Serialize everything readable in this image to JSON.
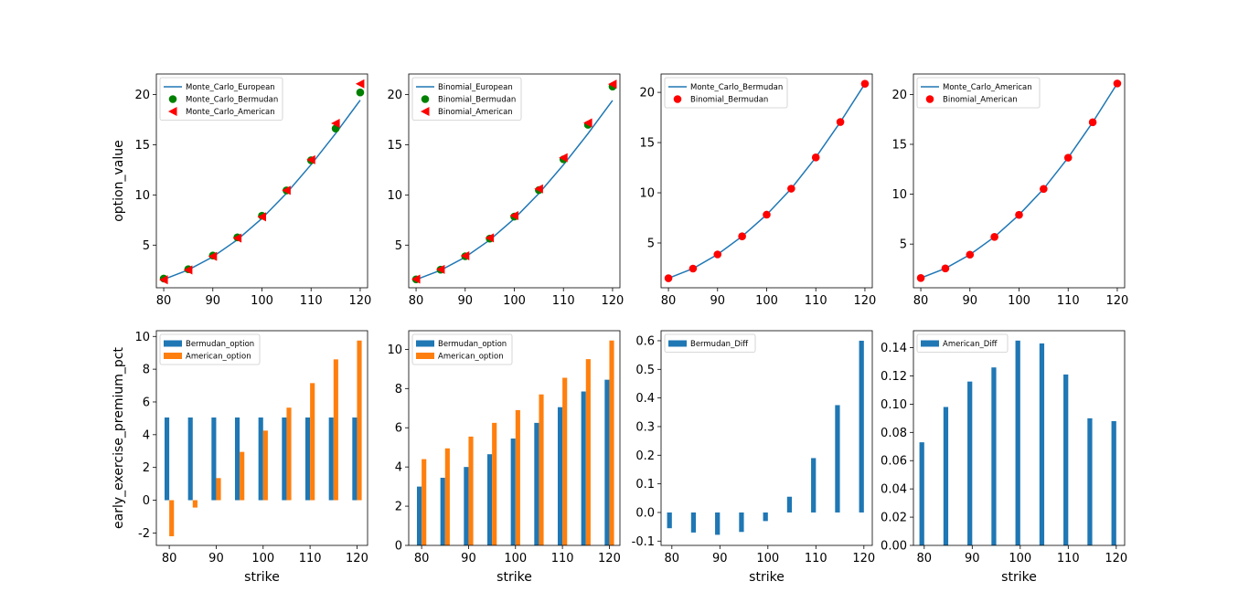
{
  "chart_data": [
    {
      "type": "line",
      "ylabel": "option_value",
      "xlabel": "",
      "x": [
        80,
        85,
        90,
        95,
        100,
        105,
        110,
        115,
        120
      ],
      "xlim": [
        78.5,
        121.5
      ],
      "ylim": [
        0.75,
        22.05
      ],
      "xticks": [
        80,
        90,
        100,
        110,
        120
      ],
      "yticks": [
        5,
        10,
        15,
        20
      ],
      "legend_loc": "upper-left",
      "series": [
        {
          "name": "Monte_Carlo_European",
          "kind": "line",
          "color": "#1f77b4",
          "values": [
            1.59,
            2.53,
            3.83,
            5.54,
            7.66,
            10.17,
            13.02,
            16.13,
            19.44
          ]
        },
        {
          "name": "Monte_Carlo_Bermudan",
          "kind": "marker",
          "marker": "circle",
          "color": "#008000",
          "values": [
            1.67,
            2.6,
            3.96,
            5.77,
            7.93,
            10.45,
            13.45,
            16.62,
            20.21
          ]
        },
        {
          "name": "Monte_Carlo_American",
          "kind": "marker",
          "marker": "triangle-left",
          "color": "#ff0000",
          "values": [
            1.55,
            2.52,
            3.88,
            5.7,
            7.82,
            10.45,
            13.5,
            17.14,
            21.07
          ]
        }
      ]
    },
    {
      "type": "line",
      "ylabel": "",
      "xlabel": "",
      "x": [
        80,
        85,
        90,
        95,
        100,
        105,
        110,
        115,
        120
      ],
      "xlim": [
        78.5,
        121.5
      ],
      "ylim": [
        0.75,
        22.05
      ],
      "xticks": [
        80,
        90,
        100,
        110,
        120
      ],
      "yticks": [
        5,
        10,
        15,
        20
      ],
      "legend_loc": "upper-left",
      "series": [
        {
          "name": "Binomial_European",
          "kind": "line",
          "color": "#1f77b4",
          "values": [
            1.56,
            2.5,
            3.8,
            5.51,
            7.64,
            10.15,
            13.0,
            16.11,
            19.42
          ]
        },
        {
          "name": "Binomial_Bermudan",
          "kind": "marker",
          "marker": "circle",
          "color": "#008000",
          "values": [
            1.59,
            2.55,
            3.89,
            5.65,
            7.84,
            10.48,
            13.55,
            16.99,
            20.8
          ]
        },
        {
          "name": "Binomial_American",
          "kind": "marker",
          "marker": "triangle-left",
          "color": "#ff0000",
          "values": [
            1.61,
            2.58,
            3.94,
            5.72,
            7.94,
            10.6,
            13.71,
            17.18,
            21.04
          ]
        }
      ]
    },
    {
      "type": "line",
      "ylabel": "",
      "xlabel": "",
      "x": [
        80,
        85,
        90,
        95,
        100,
        105,
        110,
        115,
        120
      ],
      "xlim": [
        78.5,
        121.5
      ],
      "ylim": [
        0.54,
        21.83
      ],
      "xticks": [
        80,
        90,
        100,
        110,
        120
      ],
      "yticks": [
        5,
        10,
        15,
        20
      ],
      "legend_loc": "upper-left",
      "series": [
        {
          "name": "Monte_Carlo_Bermudan",
          "kind": "line",
          "color": "#1f77b4",
          "values": [
            1.49,
            2.45,
            3.86,
            5.66,
            7.82,
            10.41,
            13.52,
            17.05,
            20.86
          ]
        },
        {
          "name": "Binomial_Bermudan",
          "kind": "marker",
          "marker": "circle",
          "color": "#ff0000",
          "values": [
            1.49,
            2.45,
            3.86,
            5.66,
            7.82,
            10.41,
            13.52,
            17.05,
            20.86
          ]
        }
      ]
    },
    {
      "type": "line",
      "ylabel": "",
      "xlabel": "",
      "x": [
        80,
        85,
        90,
        95,
        100,
        105,
        110,
        115,
        120
      ],
      "xlim": [
        78.5,
        121.5
      ],
      "ylim": [
        0.62,
        22.05
      ],
      "xticks": [
        80,
        90,
        100,
        110,
        120
      ],
      "yticks": [
        5,
        10,
        15,
        20
      ],
      "legend_loc": "upper-left",
      "series": [
        {
          "name": "Monte_Carlo_American",
          "kind": "line",
          "color": "#1f77b4",
          "values": [
            1.6,
            2.56,
            3.94,
            5.72,
            7.93,
            10.53,
            13.66,
            17.21,
            21.1
          ]
        },
        {
          "name": "Binomial_American",
          "kind": "marker",
          "marker": "circle",
          "color": "#ff0000",
          "values": [
            1.6,
            2.56,
            3.94,
            5.72,
            7.93,
            10.53,
            13.66,
            17.21,
            21.1
          ]
        }
      ]
    },
    {
      "type": "bar",
      "ylabel": "early_exercise_premium_pct",
      "xlabel": "strike",
      "x": [
        80,
        85,
        90,
        95,
        100,
        105,
        110,
        115,
        120
      ],
      "xlim": [
        77.25,
        122.25
      ],
      "ylim": [
        -2.76,
        10.35
      ],
      "xticks": [
        80,
        90,
        100,
        110,
        120
      ],
      "yticks": [
        -2,
        0,
        2,
        4,
        6,
        8,
        10
      ],
      "bar_width": 1,
      "legend_loc": "upper-left",
      "series": [
        {
          "name": "Bermudan_option",
          "color": "#1f77b4",
          "offset": -0.5,
          "values": [
            5.05,
            5.05,
            5.05,
            5.05,
            5.05,
            5.05,
            5.05,
            5.05,
            5.05
          ]
        },
        {
          "name": "American_option",
          "color": "#ff7f0e",
          "offset": 0.5,
          "values": [
            -2.2,
            -0.45,
            1.35,
            2.95,
            4.25,
            5.65,
            7.15,
            8.6,
            9.75
          ]
        }
      ]
    },
    {
      "type": "bar",
      "ylabel": "",
      "xlabel": "strike",
      "x": [
        80,
        85,
        90,
        95,
        100,
        105,
        110,
        115,
        120
      ],
      "xlim": [
        77.25,
        122.25
      ],
      "ylim": [
        0,
        10.95
      ],
      "xticks": [
        80,
        90,
        100,
        110,
        120
      ],
      "yticks": [
        0,
        2,
        4,
        6,
        8,
        10
      ],
      "bar_width": 1,
      "legend_loc": "upper-left",
      "series": [
        {
          "name": "Bermudan_option",
          "color": "#1f77b4",
          "offset": -0.5,
          "values": [
            3.0,
            3.45,
            4.0,
            4.65,
            5.45,
            6.25,
            7.05,
            7.85,
            8.45
          ]
        },
        {
          "name": "American_option",
          "color": "#ff7f0e",
          "offset": 0.5,
          "values": [
            4.4,
            4.95,
            5.55,
            6.25,
            6.9,
            7.7,
            8.55,
            9.5,
            10.45
          ]
        }
      ]
    },
    {
      "type": "bar",
      "ylabel": "",
      "xlabel": "strike",
      "x": [
        80,
        85,
        90,
        95,
        100,
        105,
        110,
        115,
        120
      ],
      "xlim": [
        77.75,
        121.75
      ],
      "ylim": [
        -0.115,
        0.635
      ],
      "xticks": [
        80,
        90,
        100,
        110,
        120
      ],
      "yticks": [
        -0.1,
        0.0,
        0.1,
        0.2,
        0.3,
        0.4,
        0.5,
        0.6
      ],
      "bar_width": 1,
      "legend_loc": "upper-left",
      "series": [
        {
          "name": "Bermudan_Diff",
          "color": "#1f77b4",
          "offset": -0.5,
          "values": [
            -0.055,
            -0.07,
            -0.078,
            -0.068,
            -0.03,
            0.055,
            0.19,
            0.375,
            0.6
          ]
        }
      ]
    },
    {
      "type": "bar",
      "ylabel": "",
      "xlabel": "strike",
      "x": [
        80,
        85,
        90,
        95,
        100,
        105,
        110,
        115,
        120
      ],
      "xlim": [
        77.75,
        121.75
      ],
      "ylim": [
        0,
        0.152
      ],
      "xticks": [
        80,
        90,
        100,
        110,
        120
      ],
      "yticks": [
        0.0,
        0.02,
        0.04,
        0.06,
        0.08,
        0.1,
        0.12,
        0.14
      ],
      "bar_width": 1,
      "legend_loc": "upper-left",
      "series": [
        {
          "name": "American_Diff",
          "color": "#1f77b4",
          "offset": -0.5,
          "values": [
            0.073,
            0.098,
            0.116,
            0.126,
            0.145,
            0.143,
            0.121,
            0.09,
            0.088
          ]
        }
      ]
    }
  ]
}
